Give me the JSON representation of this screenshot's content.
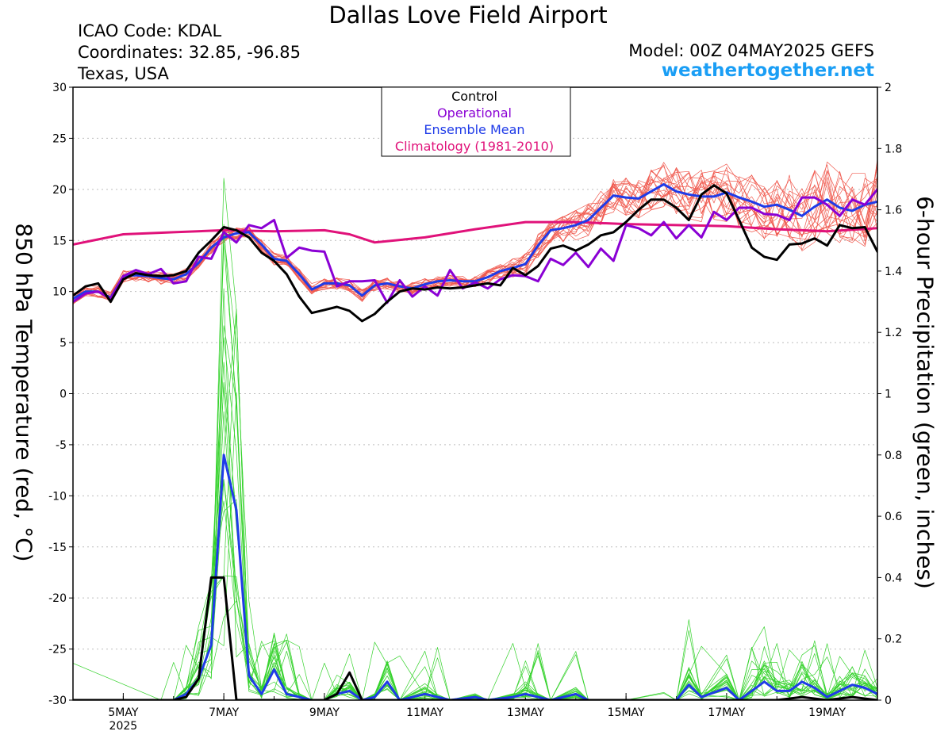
{
  "title": "Dallas Love Field Airport",
  "icao": "ICAO Code: KDAL",
  "coords": "Coordinates: 32.85, -96.85",
  "location": "Texas, USA",
  "model": "Model: 00Z 04MAY2025 GEFS",
  "brand": "weathertogether.net",
  "chart_data": {
    "type": "line",
    "y_left_label": "850 hPa Temperature (red, °C)",
    "y_right_label": "6-hour Precipitation (green, inches)",
    "y_left_range": [
      -30,
      30
    ],
    "y_left_ticks": [
      "30",
      "25",
      "20",
      "15",
      "10",
      "5",
      "0",
      "-5",
      "-10",
      "-15",
      "-20",
      "-25",
      "-30"
    ],
    "y_right_range": [
      0,
      2
    ],
    "y_right_ticks": [
      "2",
      "1.8",
      "1.6",
      "1.4",
      "1.2",
      "1",
      "0.8",
      "0.6",
      "0.4",
      "0.2",
      "0"
    ],
    "x_range_days": [
      4.0,
      20.0
    ],
    "x_ticks": [
      {
        "day": 5,
        "label": "5MAY",
        "sub": "2025"
      },
      {
        "day": 7,
        "label": "7MAY",
        "sub": ""
      },
      {
        "day": 9,
        "label": "9MAY",
        "sub": ""
      },
      {
        "day": 11,
        "label": "11MAY",
        "sub": ""
      },
      {
        "day": 13,
        "label": "13MAY",
        "sub": ""
      },
      {
        "day": 15,
        "label": "15MAY",
        "sub": ""
      },
      {
        "day": 17,
        "label": "17MAY",
        "sub": ""
      },
      {
        "day": 19,
        "label": "19MAY",
        "sub": ""
      }
    ],
    "legend": [
      {
        "name": "Control",
        "color": "#000000"
      },
      {
        "name": "Operational",
        "color": "#8a00d4"
      },
      {
        "name": "Ensemble Mean",
        "color": "#1f3be8"
      },
      {
        "name": "Climatology (1981-2010)",
        "color": "#e0127a"
      }
    ],
    "temperature": {
      "control": [
        [
          4.0,
          9.6
        ],
        [
          4.25,
          10.5
        ],
        [
          4.5,
          10.8
        ],
        [
          4.75,
          9.0
        ],
        [
          5.0,
          11.2
        ],
        [
          5.25,
          11.8
        ],
        [
          5.5,
          11.6
        ],
        [
          5.75,
          11.5
        ],
        [
          6.0,
          11.6
        ],
        [
          6.25,
          12.0
        ],
        [
          6.5,
          13.8
        ],
        [
          6.75,
          15.0
        ],
        [
          7.0,
          16.3
        ],
        [
          7.25,
          16.0
        ],
        [
          7.5,
          15.3
        ],
        [
          7.75,
          13.8
        ],
        [
          8.0,
          13.0
        ],
        [
          8.25,
          11.7
        ],
        [
          8.5,
          9.5
        ],
        [
          8.75,
          7.9
        ],
        [
          9.0,
          8.2
        ],
        [
          9.25,
          8.5
        ],
        [
          9.5,
          8.1
        ],
        [
          9.75,
          7.1
        ],
        [
          10.0,
          7.8
        ],
        [
          10.25,
          9.0
        ],
        [
          10.5,
          10.0
        ],
        [
          10.75,
          10.3
        ],
        [
          11.0,
          10.2
        ],
        [
          11.25,
          10.4
        ],
        [
          11.5,
          10.3
        ],
        [
          11.75,
          10.4
        ],
        [
          12.0,
          10.6
        ],
        [
          12.25,
          10.8
        ],
        [
          12.5,
          10.6
        ],
        [
          12.75,
          12.3
        ],
        [
          13.0,
          11.6
        ],
        [
          13.25,
          12.5
        ],
        [
          13.5,
          14.2
        ],
        [
          13.75,
          14.5
        ],
        [
          14.0,
          14.0
        ],
        [
          14.25,
          14.6
        ],
        [
          14.5,
          15.5
        ],
        [
          14.75,
          15.8
        ],
        [
          15.0,
          16.8
        ],
        [
          15.25,
          18.0
        ],
        [
          15.5,
          19.0
        ],
        [
          15.75,
          19.0
        ],
        [
          16.0,
          18.2
        ],
        [
          16.25,
          17.0
        ],
        [
          16.5,
          19.5
        ],
        [
          16.75,
          20.4
        ],
        [
          17.0,
          19.6
        ],
        [
          17.25,
          17.0
        ],
        [
          17.5,
          14.3
        ],
        [
          17.75,
          13.4
        ],
        [
          18.0,
          13.1
        ],
        [
          18.25,
          14.6
        ],
        [
          18.5,
          14.7
        ],
        [
          18.75,
          15.2
        ],
        [
          19.0,
          14.5
        ],
        [
          19.25,
          16.5
        ],
        [
          19.5,
          16.2
        ],
        [
          19.75,
          16.3
        ],
        [
          20.0,
          13.9
        ],
        [
          20.25,
          16.1
        ]
      ],
      "operational": [
        [
          4.0,
          9.0
        ],
        [
          4.25,
          9.8
        ],
        [
          4.5,
          10.0
        ],
        [
          4.75,
          9.3
        ],
        [
          5.0,
          11.5
        ],
        [
          5.25,
          12.1
        ],
        [
          5.5,
          11.7
        ],
        [
          5.75,
          12.2
        ],
        [
          6.0,
          10.8
        ],
        [
          6.25,
          11.0
        ],
        [
          6.5,
          13.4
        ],
        [
          6.75,
          13.2
        ],
        [
          7.0,
          15.8
        ],
        [
          7.25,
          14.8
        ],
        [
          7.5,
          16.5
        ],
        [
          7.75,
          16.2
        ],
        [
          8.0,
          17.0
        ],
        [
          8.25,
          13.3
        ],
        [
          8.5,
          14.3
        ],
        [
          8.75,
          14.0
        ],
        [
          9.0,
          13.9
        ],
        [
          9.25,
          10.5
        ],
        [
          9.5,
          11.0
        ],
        [
          9.75,
          11.0
        ],
        [
          10.0,
          11.1
        ],
        [
          10.25,
          8.9
        ],
        [
          10.5,
          11.1
        ],
        [
          10.75,
          9.5
        ],
        [
          11.0,
          10.5
        ],
        [
          11.25,
          9.6
        ],
        [
          11.5,
          12.1
        ],
        [
          11.75,
          10.3
        ],
        [
          12.0,
          10.9
        ],
        [
          12.25,
          10.3
        ],
        [
          12.5,
          11.2
        ],
        [
          12.75,
          11.6
        ],
        [
          13.0,
          11.5
        ],
        [
          13.25,
          11.0
        ],
        [
          13.5,
          13.2
        ],
        [
          13.75,
          12.6
        ],
        [
          14.0,
          13.8
        ],
        [
          14.25,
          12.4
        ],
        [
          14.5,
          14.2
        ],
        [
          14.75,
          13.0
        ],
        [
          15.0,
          16.5
        ],
        [
          15.25,
          16.2
        ],
        [
          15.5,
          15.5
        ],
        [
          15.75,
          16.8
        ],
        [
          16.0,
          15.2
        ],
        [
          16.25,
          16.5
        ],
        [
          16.5,
          15.3
        ],
        [
          16.75,
          17.8
        ],
        [
          17.0,
          17.0
        ],
        [
          17.25,
          18.2
        ],
        [
          17.5,
          18.2
        ],
        [
          17.75,
          17.6
        ],
        [
          18.0,
          17.5
        ],
        [
          18.25,
          17.0
        ],
        [
          18.5,
          19.2
        ],
        [
          18.75,
          19.2
        ],
        [
          19.0,
          18.5
        ],
        [
          19.25,
          17.4
        ],
        [
          19.5,
          19.0
        ],
        [
          19.75,
          18.5
        ],
        [
          20.0,
          20.0
        ],
        [
          20.25,
          19.0
        ],
        [
          20.5,
          21.5
        ],
        [
          20.75,
          22.0
        ]
      ],
      "ensemble_mean": [
        [
          4.0,
          9.3
        ],
        [
          4.25,
          10.0
        ],
        [
          4.5,
          10.0
        ],
        [
          4.75,
          9.4
        ],
        [
          5.0,
          11.5
        ],
        [
          5.25,
          11.6
        ],
        [
          5.5,
          11.5
        ],
        [
          5.75,
          11.3
        ],
        [
          6.0,
          11.2
        ],
        [
          6.25,
          11.7
        ],
        [
          6.5,
          12.8
        ],
        [
          6.75,
          14.3
        ],
        [
          7.0,
          15.3
        ],
        [
          7.25,
          15.7
        ],
        [
          7.5,
          15.8
        ],
        [
          7.75,
          14.6
        ],
        [
          8.0,
          13.2
        ],
        [
          8.25,
          13.0
        ],
        [
          8.5,
          11.7
        ],
        [
          8.75,
          10.2
        ],
        [
          9.0,
          10.8
        ],
        [
          9.25,
          10.8
        ],
        [
          9.5,
          10.6
        ],
        [
          9.75,
          9.6
        ],
        [
          10.0,
          10.6
        ],
        [
          10.25,
          10.8
        ],
        [
          10.5,
          10.5
        ],
        [
          10.75,
          10.3
        ],
        [
          11.0,
          10.7
        ],
        [
          11.25,
          11.0
        ],
        [
          11.5,
          11.1
        ],
        [
          11.75,
          11.0
        ],
        [
          12.0,
          11.0
        ],
        [
          12.25,
          11.4
        ],
        [
          12.5,
          12.0
        ],
        [
          12.75,
          12.3
        ],
        [
          13.0,
          12.7
        ],
        [
          13.25,
          14.5
        ],
        [
          13.5,
          16.0
        ],
        [
          13.75,
          16.2
        ],
        [
          14.0,
          16.5
        ],
        [
          14.25,
          17.0
        ],
        [
          14.5,
          18.2
        ],
        [
          14.75,
          19.4
        ],
        [
          15.0,
          19.2
        ],
        [
          15.25,
          19.1
        ],
        [
          15.5,
          19.8
        ],
        [
          15.75,
          20.5
        ],
        [
          16.0,
          19.8
        ],
        [
          16.25,
          19.5
        ],
        [
          16.5,
          19.3
        ],
        [
          16.75,
          19.3
        ],
        [
          17.0,
          19.7
        ],
        [
          17.25,
          19.2
        ],
        [
          17.5,
          18.8
        ],
        [
          17.75,
          18.3
        ],
        [
          18.0,
          18.5
        ],
        [
          18.25,
          18.0
        ],
        [
          18.5,
          17.4
        ],
        [
          18.75,
          18.3
        ],
        [
          19.0,
          19.0
        ],
        [
          19.25,
          18.2
        ],
        [
          19.5,
          17.9
        ],
        [
          19.75,
          18.5
        ],
        [
          20.0,
          18.8
        ],
        [
          20.25,
          18.3
        ],
        [
          20.5,
          17.0
        ],
        [
          20.75,
          17.3
        ]
      ],
      "climatology": [
        [
          4.0,
          14.6
        ],
        [
          5.0,
          15.6
        ],
        [
          6.0,
          15.8
        ],
        [
          7.0,
          16.0
        ],
        [
          8.0,
          15.9
        ],
        [
          9.0,
          16.0
        ],
        [
          9.5,
          15.6
        ],
        [
          10.0,
          14.8
        ],
        [
          11.0,
          15.3
        ],
        [
          12.0,
          16.1
        ],
        [
          13.0,
          16.8
        ],
        [
          14.0,
          16.8
        ],
        [
          15.0,
          16.6
        ],
        [
          16.0,
          16.5
        ],
        [
          17.0,
          16.4
        ],
        [
          18.0,
          16.1
        ],
        [
          19.0,
          15.9
        ],
        [
          20.0,
          16.2
        ],
        [
          20.75,
          16.4
        ]
      ]
    },
    "precipitation": {
      "control": [
        [
          4.0,
          0
        ],
        [
          5.5,
          0
        ],
        [
          6.0,
          0.0
        ],
        [
          6.25,
          0.01
        ],
        [
          6.5,
          0.07
        ],
        [
          6.75,
          0.4
        ],
        [
          7.0,
          0.4
        ],
        [
          7.25,
          0.0
        ],
        [
          7.5,
          0
        ],
        [
          8.0,
          0
        ],
        [
          8.75,
          0
        ],
        [
          9.0,
          0.0
        ],
        [
          9.25,
          0.02
        ],
        [
          9.5,
          0.09
        ],
        [
          9.75,
          0.0
        ],
        [
          10.0,
          0
        ],
        [
          12.0,
          0
        ],
        [
          18.0,
          0.0
        ],
        [
          18.5,
          0.01
        ],
        [
          19.0,
          0.0
        ],
        [
          19.5,
          0.01
        ],
        [
          20.0,
          0.0
        ]
      ],
      "ensemble_mean": [
        [
          4.0,
          0
        ],
        [
          5.75,
          0.0
        ],
        [
          6.0,
          0.0
        ],
        [
          6.25,
          0.02
        ],
        [
          6.5,
          0.07
        ],
        [
          6.75,
          0.18
        ],
        [
          7.0,
          0.8
        ],
        [
          7.25,
          0.62
        ],
        [
          7.5,
          0.08
        ],
        [
          7.75,
          0.02
        ],
        [
          8.0,
          0.1
        ],
        [
          8.25,
          0.02
        ],
        [
          8.5,
          0.01
        ],
        [
          8.75,
          0.0
        ],
        [
          9.0,
          0.0
        ],
        [
          9.25,
          0.02
        ],
        [
          9.5,
          0.03
        ],
        [
          9.75,
          0.0
        ],
        [
          10.0,
          0.01
        ],
        [
          10.25,
          0.06
        ],
        [
          10.5,
          0.0
        ],
        [
          11.0,
          0.02
        ],
        [
          11.25,
          0.01
        ],
        [
          11.5,
          0.0
        ],
        [
          12.0,
          0.01
        ],
        [
          12.25,
          0.0
        ],
        [
          12.75,
          0.01
        ],
        [
          13.0,
          0.02
        ],
        [
          13.25,
          0.01
        ],
        [
          13.5,
          0.0
        ],
        [
          14.0,
          0.02
        ],
        [
          14.25,
          0.0
        ],
        [
          15.0,
          0.0
        ],
        [
          15.75,
          0.0
        ],
        [
          16.0,
          0.0
        ],
        [
          16.25,
          0.05
        ],
        [
          16.5,
          0.01
        ],
        [
          17.0,
          0.04
        ],
        [
          17.25,
          0.0
        ],
        [
          17.5,
          0.03
        ],
        [
          17.75,
          0.06
        ],
        [
          18.0,
          0.03
        ],
        [
          18.25,
          0.03
        ],
        [
          18.5,
          0.06
        ],
        [
          18.75,
          0.04
        ],
        [
          19.0,
          0.01
        ],
        [
          19.25,
          0.03
        ],
        [
          19.5,
          0.05
        ],
        [
          19.75,
          0.04
        ],
        [
          20.0,
          0.02
        ],
        [
          20.25,
          0.02
        ]
      ]
    }
  }
}
